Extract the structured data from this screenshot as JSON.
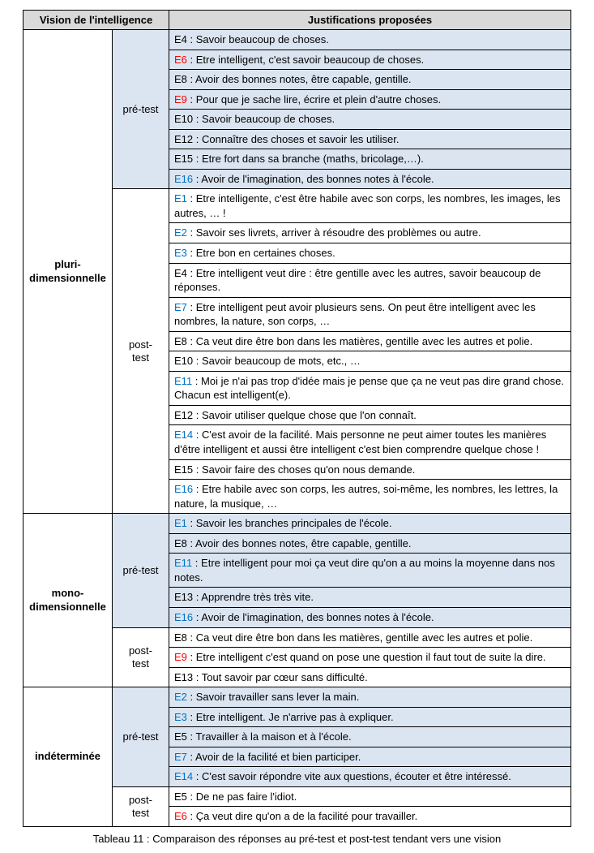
{
  "header": {
    "col1": "Vision de l'intelligence",
    "col2": "Justifications proposées"
  },
  "visions": [
    {
      "label": "pluri-dimensionnelle",
      "phases": [
        {
          "label": "pré-test",
          "pre": true,
          "rows": [
            {
              "code": "E4",
              "color": "black",
              "text": "Savoir beaucoup de choses."
            },
            {
              "code": "E6",
              "color": "red",
              "text": "Etre intelligent, c'est savoir beaucoup de choses."
            },
            {
              "code": "E8",
              "color": "black",
              "text": "Avoir des bonnes notes, être capable, gentille."
            },
            {
              "code": "E9",
              "color": "red",
              "text": "Pour que je sache lire, écrire et plein d'autre choses."
            },
            {
              "code": "E10",
              "color": "black",
              "text": "Savoir beaucoup de choses."
            },
            {
              "code": "E12",
              "color": "black",
              "text": "Connaître des choses et savoir les utiliser."
            },
            {
              "code": "E15",
              "color": "black",
              "text": "Etre fort dans sa branche (maths, bricolage,…)."
            },
            {
              "code": "E16",
              "color": "blue",
              "text": "Avoir de l'imagination, des bonnes notes à l'école."
            }
          ]
        },
        {
          "label": "post-test",
          "pre": false,
          "rows": [
            {
              "code": "E1",
              "color": "blue",
              "text": "Etre intelligente, c'est être habile avec son corps, les nombres, les images, les autres, … !"
            },
            {
              "code": "E2",
              "color": "blue",
              "text": "Savoir ses livrets, arriver à résoudre des problèmes ou autre."
            },
            {
              "code": "E3",
              "color": "blue",
              "text": "Etre bon en certaines choses."
            },
            {
              "code": "E4",
              "color": "black",
              "text": "Etre intelligent veut dire : être gentille avec les autres, savoir beaucoup de réponses."
            },
            {
              "code": "E7",
              "color": "blue",
              "text": "Etre intelligent peut avoir plusieurs sens. On peut être intelligent avec les nombres, la nature, son corps, …"
            },
            {
              "code": "E8",
              "color": "black",
              "text": "Ca veut dire être bon dans les matières, gentille avec les autres et polie."
            },
            {
              "code": "E10",
              "color": "black",
              "text": "Savoir beaucoup de mots, etc., …"
            },
            {
              "code": "E11",
              "color": "blue",
              "text": "Moi je n'ai pas trop d'idée mais je pense que ça ne veut pas dire grand chose. Chacun est intelligent(e)."
            },
            {
              "code": "E12",
              "color": "black",
              "text": "Savoir utiliser quelque chose que l'on connaît."
            },
            {
              "code": "E14",
              "color": "blue",
              "text": "C'est avoir de la facilité. Mais personne ne peut aimer toutes les manières d'être intelligent et aussi être intelligent c'est bien comprendre quelque chose !"
            },
            {
              "code": "E15",
              "color": "black",
              "text": "Savoir faire des choses qu'on nous demande."
            },
            {
              "code": "E16",
              "color": "blue",
              "text": "Etre habile avec son corps, les autres, soi-même, les nombres, les lettres, la nature, la musique, …"
            }
          ]
        }
      ]
    },
    {
      "label": "mono-dimensionnelle",
      "phases": [
        {
          "label": "pré-test",
          "pre": true,
          "rows": [
            {
              "code": "E1",
              "color": "blue",
              "text": "Savoir les branches principales de l'école."
            },
            {
              "code": "E8",
              "color": "black",
              "text": "Avoir des bonnes notes, être capable, gentille."
            },
            {
              "code": "E11",
              "color": "blue",
              "text": "Etre intelligent pour moi ça veut dire qu'on a au moins la moyenne dans nos notes."
            },
            {
              "code": "E13",
              "color": "black",
              "text": "Apprendre très très vite."
            },
            {
              "code": "E16",
              "color": "blue",
              "text": "Avoir de l'imagination, des bonnes notes à l'école."
            }
          ]
        },
        {
          "label": "post-test",
          "pre": false,
          "rows": [
            {
              "code": "E8",
              "color": "black",
              "text": "Ca veut dire être bon dans les matières, gentille avec les autres et polie."
            },
            {
              "code": "E9",
              "color": "red",
              "text": "Etre intelligent c'est quand on pose une question il faut tout de suite la dire."
            },
            {
              "code": "E13",
              "color": "black",
              "text": "Tout savoir par cœur sans difficulté."
            }
          ]
        }
      ]
    },
    {
      "label": "indéterminée",
      "phases": [
        {
          "label": "pré-test",
          "pre": true,
          "rows": [
            {
              "code": "E2",
              "color": "blue",
              "text": "Savoir travailler sans lever la main."
            },
            {
              "code": "E3",
              "color": "blue",
              "text": "Etre intelligent. Je n'arrive pas à expliquer."
            },
            {
              "code": "E5",
              "color": "black",
              "text": "Travailler à la maison et à l'école."
            },
            {
              "code": "E7",
              "color": "blue",
              "text": "Avoir de la facilité et bien participer."
            },
            {
              "code": "E14",
              "color": "blue",
              "text": "C'est savoir répondre vite aux questions, écouter et être intéressé."
            }
          ]
        },
        {
          "label": "post-test",
          "pre": false,
          "rows": [
            {
              "code": "E5",
              "color": "black",
              "text": "De ne pas faire l'idiot."
            },
            {
              "code": "E6",
              "color": "red",
              "text": "Ça veut dire qu'on a de la facilité pour travailler."
            }
          ]
        }
      ]
    }
  ],
  "caption_prefix": "Tableau 11 :",
  "caption_text": " Comparaison des réponses au pré-test et post-test tendant vers une vision",
  "colors": {
    "black": "#000000",
    "red": "#ff0000",
    "blue": "#0070c0"
  }
}
